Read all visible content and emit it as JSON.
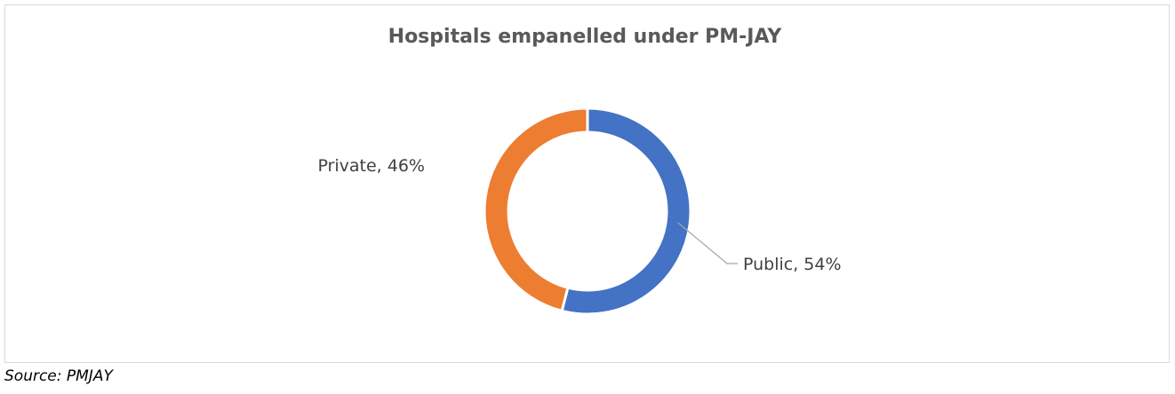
{
  "chart_data": {
    "type": "pie",
    "variant": "doughnut",
    "title": "Hospitals empanelled under PM-JAY",
    "slices": [
      {
        "label": "Public",
        "value": 54,
        "color": "#4472C4",
        "data_label": "Public, 54%"
      },
      {
        "label": "Private",
        "value": 46,
        "color": "#ED7D31",
        "data_label": "Private, 46%"
      }
    ],
    "legend": "none",
    "start_angle": "12 o'clock, clockwise"
  },
  "source": "Source: PMJAY"
}
